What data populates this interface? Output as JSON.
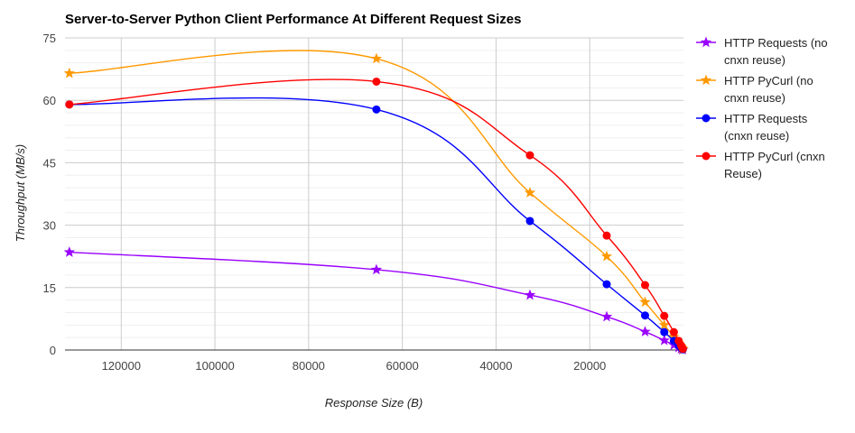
{
  "chart_data": {
    "type": "line",
    "title": "Server-to-Server Python Client Performance At Different Request Sizes",
    "xlabel": "Response Size (B)",
    "ylabel": "Throughput (MB/s)",
    "x_reversed": true,
    "xlim": [
      0,
      132000
    ],
    "ylim": [
      0,
      75
    ],
    "x_ticks": [
      120000,
      100000,
      80000,
      60000,
      40000,
      20000
    ],
    "y_ticks": [
      0,
      15,
      30,
      45,
      60,
      75
    ],
    "grid": true,
    "legend_position": "right",
    "x": [
      131072,
      65536,
      32768,
      16384,
      8192,
      4096,
      2048,
      1024,
      512,
      256,
      128
    ],
    "series": [
      {
        "name": "HTTP Requests (no cnxn reuse)",
        "legend_lines": [
          "HTTP Requests (no",
          "cnxn reuse)"
        ],
        "color": "#9900ff",
        "marker": "star",
        "values": [
          23.5,
          19.3,
          13.2,
          8.0,
          4.4,
          2.3,
          1.2,
          0.6,
          0.3,
          0.15,
          0.08
        ]
      },
      {
        "name": "HTTP PyCurl (no cnxn reuse)",
        "legend_lines": [
          "HTTP PyCurl (no",
          "cnxn reuse)"
        ],
        "color": "#ff9900",
        "marker": "star",
        "values": [
          66.5,
          70.0,
          37.8,
          22.5,
          11.5,
          6.0,
          3.2,
          1.7,
          0.9,
          0.45,
          0.22
        ]
      },
      {
        "name": "HTTP Requests (cnxn reuse)",
        "legend_lines": [
          "HTTP Requests",
          "(cnxn reuse)"
        ],
        "color": "#0000ff",
        "marker": "circle",
        "values": [
          59.0,
          57.8,
          31.0,
          15.8,
          8.3,
          4.3,
          2.2,
          1.1,
          0.55,
          0.28,
          0.14
        ]
      },
      {
        "name": "HTTP PyCurl (cnxn Reuse)",
        "legend_lines": [
          "HTTP PyCurl (cnxn",
          "Reuse)"
        ],
        "color": "#ff0000",
        "marker": "circle",
        "values": [
          59.0,
          64.5,
          46.8,
          27.5,
          15.6,
          8.2,
          4.3,
          2.2,
          1.1,
          0.55,
          0.28
        ]
      }
    ]
  }
}
